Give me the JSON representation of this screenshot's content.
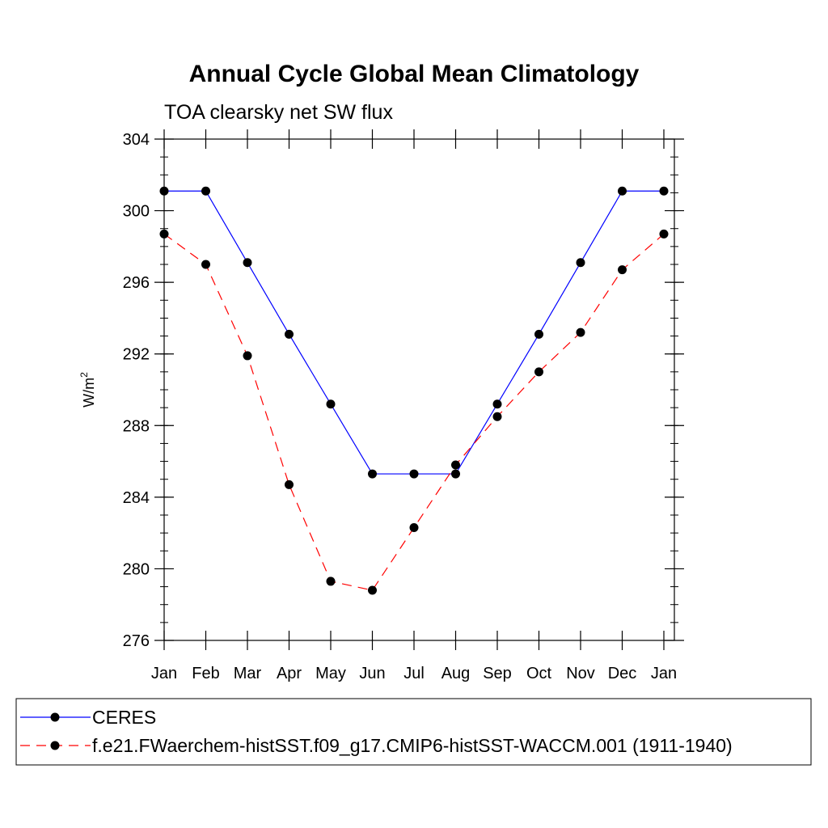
{
  "chart_data": {
    "type": "line",
    "title": "Annual Cycle Global Mean Climatology",
    "subtitle": "TOA clearsky net SW flux",
    "ylabel_main": "W/m",
    "ylabel_sup": "2",
    "ylim": [
      276,
      304
    ],
    "y_major_step": 4,
    "y_minor_step": 1,
    "yticks": [
      "276",
      "280",
      "284",
      "288",
      "292",
      "296",
      "300",
      "304"
    ],
    "categories": [
      "Jan",
      "Feb",
      "Mar",
      "Apr",
      "May",
      "Jun",
      "Jul",
      "Aug",
      "Sep",
      "Oct",
      "Nov",
      "Dec",
      "Jan"
    ],
    "series": [
      {
        "name": "CERES",
        "color": "#0000ff",
        "dash": "solid",
        "values": [
          301.1,
          301.1,
          297.1,
          293.1,
          289.2,
          285.3,
          285.3,
          285.3,
          289.2,
          293.1,
          297.1,
          301.1,
          301.1
        ]
      },
      {
        "name": "f.e21.FWaerchem-histSST.f09_g17.CMIP6-histSST-WACCM.001 (1911-1940)",
        "color": "#ff0000",
        "dash": "dashed",
        "values": [
          298.7,
          297.0,
          291.9,
          284.7,
          279.3,
          278.8,
          282.3,
          285.8,
          288.5,
          291.0,
          293.2,
          296.7,
          298.7
        ]
      }
    ],
    "marker": "filled-circle",
    "legend_position": "bottom"
  }
}
